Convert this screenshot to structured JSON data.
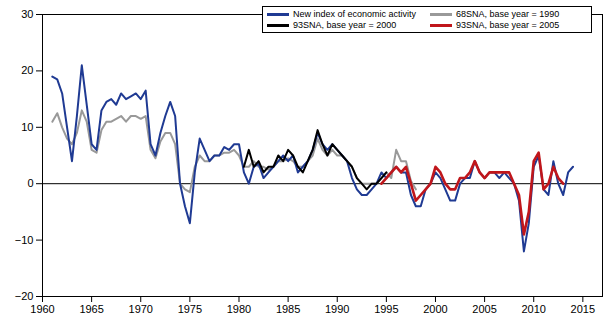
{
  "chart_data": {
    "type": "line",
    "x": [
      1961,
      1961.5,
      1962,
      1962.5,
      1963,
      1963.5,
      1964,
      1964.5,
      1965,
      1965.5,
      1966,
      1966.5,
      1967,
      1967.5,
      1968,
      1968.5,
      1969,
      1969.5,
      1970,
      1970.5,
      1971,
      1971.5,
      1972,
      1972.5,
      1973,
      1973.5,
      1974,
      1974.5,
      1975,
      1975.5,
      1976,
      1976.5,
      1977,
      1977.5,
      1978,
      1978.5,
      1979,
      1979.5,
      1980,
      1980.5,
      1981,
      1981.5,
      1982,
      1982.5,
      1983,
      1983.5,
      1984,
      1984.5,
      1985,
      1985.5,
      1986,
      1986.5,
      1987,
      1987.5,
      1988,
      1988.5,
      1989,
      1989.5,
      1990,
      1990.5,
      1991,
      1991.5,
      1992,
      1992.5,
      1993,
      1993.5,
      1994,
      1994.5,
      1995,
      1995.5,
      1996,
      1996.5,
      1997,
      1997.5,
      1998,
      1998.5,
      1999,
      1999.5,
      2000,
      2000.5,
      2001,
      2001.5,
      2002,
      2002.5,
      2003,
      2003.5,
      2004,
      2004.5,
      2005,
      2005.5,
      2006,
      2006.5,
      2007,
      2007.5,
      2008,
      2008.5,
      2009,
      2009.5,
      2010,
      2010.5,
      2011,
      2011.5,
      2012,
      2012.5,
      2013,
      2013.5,
      2014
    ],
    "series": [
      {
        "name": "68SNA, base year = 1990",
        "color": "#999999",
        "values": [
          11,
          12.5,
          10,
          8,
          7,
          9,
          13,
          11,
          6,
          5.5,
          9.5,
          11,
          11,
          11.5,
          12,
          11,
          12,
          12,
          11.5,
          12,
          6,
          4.5,
          7.5,
          9,
          9,
          7,
          0,
          -1,
          -1.5,
          3,
          5,
          4,
          4,
          5,
          5,
          5.5,
          5.5,
          6,
          5,
          3,
          3,
          4,
          3,
          3,
          2.5,
          3,
          4,
          4,
          4.5,
          4,
          3,
          3,
          4,
          5,
          8,
          6,
          5,
          6,
          5,
          5,
          4,
          3,
          1,
          0,
          0,
          0,
          0,
          1,
          2,
          1,
          6,
          4,
          4,
          0.5,
          -1,
          null,
          null,
          null,
          null,
          null,
          null,
          null,
          null,
          null,
          null,
          null,
          null,
          null,
          null,
          null,
          null,
          null,
          null,
          null,
          null,
          null,
          null,
          null,
          null,
          null,
          null,
          null,
          null,
          null,
          null,
          null,
          null
        ]
      },
      {
        "name": "New index of economic activity",
        "color": "#1f3a93",
        "values": [
          19,
          18.5,
          16,
          10,
          4,
          12,
          21,
          14,
          7,
          6,
          13,
          14.5,
          15,
          14,
          16,
          15,
          15.5,
          16,
          15,
          16.5,
          7,
          5,
          9,
          12,
          14.5,
          12,
          0,
          -4,
          -7,
          2,
          8,
          6,
          4,
          5,
          5,
          6.5,
          6,
          7,
          7,
          2,
          0,
          3,
          3.5,
          1,
          2,
          3,
          4,
          5,
          4,
          5,
          2,
          3,
          4,
          6,
          9,
          7,
          6,
          7,
          6,
          5,
          4,
          1,
          -1,
          -2,
          -2,
          -1,
          0,
          2,
          1,
          2,
          3,
          2,
          2,
          -2,
          -4,
          -4,
          -1,
          0,
          2,
          1,
          -1,
          -3,
          -3,
          0,
          1,
          1,
          4,
          2,
          1,
          2,
          2,
          1,
          2,
          1,
          0,
          -3,
          -12,
          -7,
          3,
          5,
          -1,
          -2,
          4,
          0,
          -2,
          2,
          3
        ]
      },
      {
        "name": "93SNA, base year = 2000",
        "color": "#000000",
        "values": [
          null,
          null,
          null,
          null,
          null,
          null,
          null,
          null,
          null,
          null,
          null,
          null,
          null,
          null,
          null,
          null,
          null,
          null,
          null,
          null,
          null,
          null,
          null,
          null,
          null,
          null,
          null,
          null,
          null,
          null,
          null,
          null,
          null,
          null,
          null,
          null,
          null,
          null,
          null,
          3,
          6,
          3,
          4,
          2,
          3,
          3,
          5,
          4,
          6,
          5,
          3,
          2,
          4,
          6,
          9.5,
          7,
          5,
          7,
          6,
          5,
          4,
          3,
          1,
          0,
          -1,
          0,
          0,
          1,
          2,
          null,
          null,
          null,
          null,
          null,
          null,
          null,
          null,
          null,
          null,
          null,
          null,
          null,
          null,
          null,
          null,
          null,
          null,
          null,
          null,
          null,
          null,
          null,
          null,
          null,
          null,
          null,
          null,
          null,
          null,
          null,
          null,
          null,
          null,
          null,
          null,
          null,
          null
        ]
      },
      {
        "name": "93SNA, base year = 2005",
        "color": "#c0161b",
        "values": [
          null,
          null,
          null,
          null,
          null,
          null,
          null,
          null,
          null,
          null,
          null,
          null,
          null,
          null,
          null,
          null,
          null,
          null,
          null,
          null,
          null,
          null,
          null,
          null,
          null,
          null,
          null,
          null,
          null,
          null,
          null,
          null,
          null,
          null,
          null,
          null,
          null,
          null,
          null,
          null,
          null,
          null,
          null,
          null,
          null,
          null,
          null,
          null,
          null,
          null,
          null,
          null,
          null,
          null,
          null,
          null,
          null,
          null,
          null,
          null,
          null,
          null,
          null,
          null,
          null,
          null,
          null,
          0,
          1,
          2,
          3,
          2,
          3,
          0,
          -3,
          -2,
          -1,
          0,
          3,
          2,
          0,
          -1,
          -1,
          1,
          1,
          2,
          4,
          2,
          1,
          2,
          2,
          2,
          2,
          2,
          0,
          -2,
          -9,
          -5,
          4,
          5.5,
          -1,
          0,
          3,
          1,
          0,
          null,
          null
        ]
      }
    ],
    "xlim": [
      1960,
      2017
    ],
    "xticks": [
      1960,
      1965,
      1970,
      1975,
      1980,
      1985,
      1990,
      1995,
      2000,
      2005,
      2010,
      2015
    ],
    "ylim": [
      -20,
      30
    ],
    "yticks": [
      -20,
      -10,
      0,
      10,
      20,
      30
    ],
    "legend": "top-right"
  }
}
